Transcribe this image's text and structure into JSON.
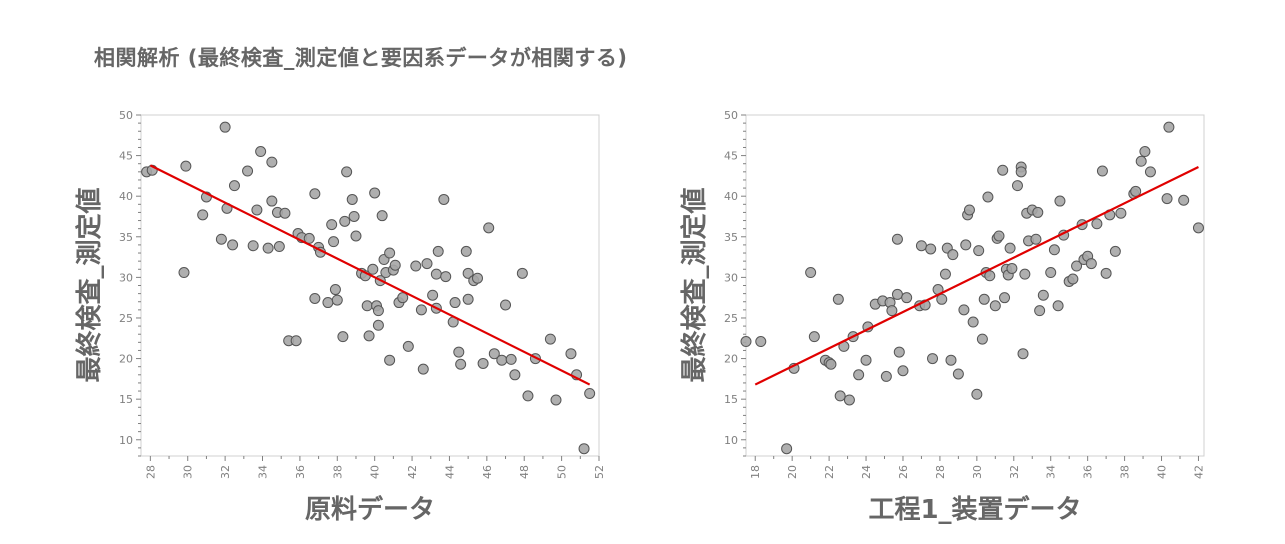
{
  "title": "相関解析 (最終検査_測定値と要因系データが相関する)",
  "colors": {
    "point_fill": "#a6a6a6",
    "point_stroke": "#555555",
    "fit_line": "#e00000",
    "text": "#666666",
    "tick": "#808080",
    "frame": "#d0d0d0"
  },
  "chart_data": [
    {
      "type": "scatter",
      "title": "",
      "xlabel": "原料データ",
      "ylabel": "最終検査_測定値",
      "xlim": [
        27.5,
        52
      ],
      "ylim": [
        8,
        50
      ],
      "x_ticks": [
        28,
        30,
        32,
        34,
        36,
        38,
        40,
        42,
        44,
        46,
        48,
        50,
        52
      ],
      "y_ticks": [
        10,
        15,
        20,
        25,
        30,
        35,
        40,
        45,
        50
      ],
      "fit_line": {
        "x": [
          28,
          51.5
        ],
        "y": [
          43.8,
          16.8
        ]
      },
      "points": [
        [
          27.8,
          43.0
        ],
        [
          28.1,
          43.2
        ],
        [
          29.8,
          30.6
        ],
        [
          29.9,
          43.7
        ],
        [
          30.8,
          37.7
        ],
        [
          31.0,
          39.9
        ],
        [
          31.8,
          34.7
        ],
        [
          32.0,
          48.5
        ],
        [
          32.1,
          38.5
        ],
        [
          32.4,
          34.0
        ],
        [
          32.5,
          41.3
        ],
        [
          33.2,
          43.1
        ],
        [
          33.5,
          33.9
        ],
        [
          33.7,
          38.3
        ],
        [
          33.9,
          45.5
        ],
        [
          34.3,
          33.6
        ],
        [
          34.5,
          44.2
        ],
        [
          34.5,
          39.4
        ],
        [
          34.8,
          38.0
        ],
        [
          34.9,
          33.8
        ],
        [
          35.2,
          37.9
        ],
        [
          35.4,
          22.2
        ],
        [
          35.8,
          22.2
        ],
        [
          35.9,
          35.4
        ],
        [
          36.1,
          34.9
        ],
        [
          36.5,
          34.8
        ],
        [
          36.8,
          27.4
        ],
        [
          36.8,
          40.3
        ],
        [
          37.0,
          33.7
        ],
        [
          37.1,
          33.1
        ],
        [
          37.5,
          26.9
        ],
        [
          37.7,
          36.5
        ],
        [
          37.8,
          34.4
        ],
        [
          37.9,
          28.5
        ],
        [
          38.0,
          27.2
        ],
        [
          38.3,
          22.7
        ],
        [
          38.4,
          36.9
        ],
        [
          38.5,
          43.0
        ],
        [
          38.8,
          39.6
        ],
        [
          38.9,
          37.5
        ],
        [
          39.0,
          35.1
        ],
        [
          39.3,
          30.5
        ],
        [
          39.5,
          30.2
        ],
        [
          39.6,
          26.5
        ],
        [
          39.7,
          22.8
        ],
        [
          39.9,
          31.0
        ],
        [
          40.0,
          40.4
        ],
        [
          40.1,
          26.5
        ],
        [
          40.2,
          24.1
        ],
        [
          40.2,
          25.9
        ],
        [
          40.3,
          29.6
        ],
        [
          40.4,
          37.6
        ],
        [
          40.5,
          32.2
        ],
        [
          40.6,
          30.6
        ],
        [
          40.8,
          33.0
        ],
        [
          40.8,
          19.8
        ],
        [
          41.0,
          30.9
        ],
        [
          41.1,
          31.5
        ],
        [
          41.3,
          26.9
        ],
        [
          41.5,
          27.5
        ],
        [
          41.8,
          21.5
        ],
        [
          42.2,
          31.4
        ],
        [
          42.5,
          26.0
        ],
        [
          42.6,
          18.7
        ],
        [
          42.8,
          31.7
        ],
        [
          43.1,
          27.8
        ],
        [
          43.3,
          30.4
        ],
        [
          43.3,
          26.2
        ],
        [
          43.4,
          33.2
        ],
        [
          43.7,
          39.6
        ],
        [
          43.8,
          30.1
        ],
        [
          44.2,
          24.5
        ],
        [
          44.3,
          26.9
        ],
        [
          44.5,
          20.8
        ],
        [
          44.6,
          19.3
        ],
        [
          44.9,
          33.2
        ],
        [
          45.0,
          30.5
        ],
        [
          45.0,
          27.3
        ],
        [
          45.3,
          29.6
        ],
        [
          45.5,
          29.9
        ],
        [
          45.8,
          19.4
        ],
        [
          46.1,
          36.1
        ],
        [
          46.4,
          20.6
        ],
        [
          46.8,
          19.8
        ],
        [
          47.0,
          26.6
        ],
        [
          47.3,
          19.9
        ],
        [
          47.5,
          18.0
        ],
        [
          47.9,
          30.5
        ],
        [
          48.2,
          15.4
        ],
        [
          48.6,
          20.0
        ],
        [
          49.4,
          22.4
        ],
        [
          49.7,
          14.9
        ],
        [
          50.5,
          20.6
        ],
        [
          50.8,
          18.0
        ],
        [
          51.2,
          8.9
        ],
        [
          51.5,
          15.7
        ]
      ]
    },
    {
      "type": "scatter",
      "title": "",
      "xlabel": "工程1_装置データ",
      "ylabel": "最終検査_測定値",
      "xlim": [
        17.5,
        42.3
      ],
      "ylim": [
        8,
        50
      ],
      "x_ticks": [
        18,
        20,
        22,
        24,
        26,
        28,
        30,
        32,
        34,
        36,
        38,
        40,
        42
      ],
      "y_ticks": [
        10,
        15,
        20,
        25,
        30,
        35,
        40,
        45,
        50
      ],
      "fit_line": {
        "x": [
          18,
          42
        ],
        "y": [
          16.8,
          43.6
        ]
      },
      "points": [
        [
          17.5,
          22.1
        ],
        [
          18.3,
          22.1
        ],
        [
          19.7,
          8.9
        ],
        [
          20.1,
          18.8
        ],
        [
          21.0,
          30.6
        ],
        [
          21.2,
          22.7
        ],
        [
          21.8,
          19.8
        ],
        [
          22.0,
          19.5
        ],
        [
          22.1,
          19.3
        ],
        [
          22.5,
          27.3
        ],
        [
          22.6,
          15.4
        ],
        [
          22.8,
          21.5
        ],
        [
          23.1,
          14.9
        ],
        [
          23.3,
          22.7
        ],
        [
          23.6,
          18.0
        ],
        [
          24.0,
          19.8
        ],
        [
          24.1,
          23.9
        ],
        [
          24.5,
          26.7
        ],
        [
          24.9,
          27.1
        ],
        [
          25.1,
          17.8
        ],
        [
          25.3,
          26.9
        ],
        [
          25.4,
          25.9
        ],
        [
          25.7,
          34.7
        ],
        [
          25.7,
          27.9
        ],
        [
          25.8,
          20.8
        ],
        [
          26.0,
          18.5
        ],
        [
          26.2,
          27.5
        ],
        [
          26.9,
          26.5
        ],
        [
          27.0,
          33.9
        ],
        [
          27.2,
          26.6
        ],
        [
          27.5,
          33.5
        ],
        [
          27.6,
          20.0
        ],
        [
          27.9,
          28.5
        ],
        [
          28.1,
          27.3
        ],
        [
          28.3,
          30.4
        ],
        [
          28.4,
          33.6
        ],
        [
          28.6,
          19.8
        ],
        [
          28.7,
          32.8
        ],
        [
          29.0,
          18.1
        ],
        [
          29.3,
          26.0
        ],
        [
          29.4,
          34.0
        ],
        [
          29.5,
          37.7
        ],
        [
          29.6,
          38.3
        ],
        [
          29.8,
          24.5
        ],
        [
          30.0,
          15.6
        ],
        [
          30.1,
          33.3
        ],
        [
          30.3,
          22.4
        ],
        [
          30.4,
          27.3
        ],
        [
          30.5,
          30.6
        ],
        [
          30.6,
          39.9
        ],
        [
          30.7,
          30.2
        ],
        [
          31.0,
          26.5
        ],
        [
          31.1,
          34.8
        ],
        [
          31.2,
          35.1
        ],
        [
          31.4,
          43.2
        ],
        [
          31.5,
          27.5
        ],
        [
          31.6,
          31.0
        ],
        [
          31.7,
          30.3
        ],
        [
          31.8,
          33.6
        ],
        [
          31.9,
          31.1
        ],
        [
          32.2,
          41.3
        ],
        [
          32.4,
          43.6
        ],
        [
          32.4,
          43.0
        ],
        [
          32.5,
          20.6
        ],
        [
          32.6,
          30.4
        ],
        [
          32.7,
          37.9
        ],
        [
          32.8,
          34.5
        ],
        [
          33.0,
          38.3
        ],
        [
          33.2,
          34.7
        ],
        [
          33.3,
          38.0
        ],
        [
          33.4,
          25.9
        ],
        [
          33.6,
          27.8
        ],
        [
          34.0,
          30.6
        ],
        [
          34.2,
          33.4
        ],
        [
          34.4,
          26.5
        ],
        [
          34.5,
          39.4
        ],
        [
          34.7,
          35.2
        ],
        [
          35.0,
          29.5
        ],
        [
          35.2,
          29.8
        ],
        [
          35.4,
          31.4
        ],
        [
          35.7,
          36.5
        ],
        [
          35.8,
          32.2
        ],
        [
          36.0,
          32.6
        ],
        [
          36.2,
          31.7
        ],
        [
          36.5,
          36.6
        ],
        [
          36.8,
          43.1
        ],
        [
          37.0,
          30.5
        ],
        [
          37.2,
          37.7
        ],
        [
          37.5,
          33.2
        ],
        [
          37.8,
          37.9
        ],
        [
          38.5,
          40.3
        ],
        [
          38.6,
          40.6
        ],
        [
          38.9,
          44.3
        ],
        [
          39.1,
          45.5
        ],
        [
          39.4,
          43.0
        ],
        [
          40.3,
          39.7
        ],
        [
          40.4,
          48.5
        ],
        [
          41.2,
          39.5
        ],
        [
          42.0,
          36.1
        ]
      ]
    }
  ]
}
